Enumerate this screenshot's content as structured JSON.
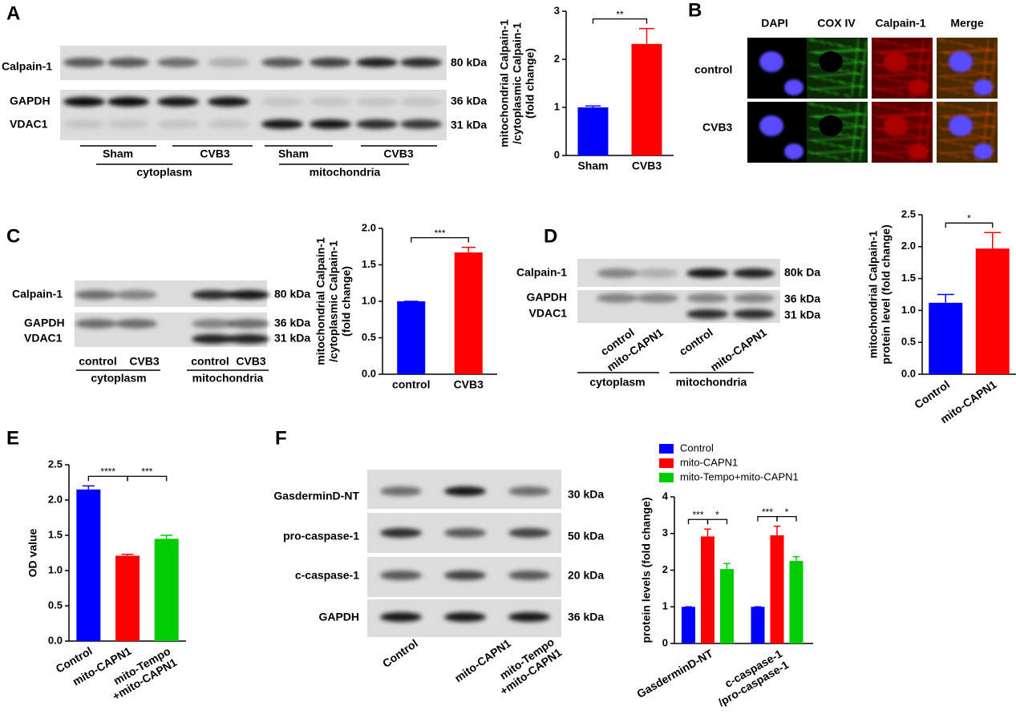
{
  "panel_labels": [
    "A",
    "B",
    "C",
    "D",
    "E",
    "F"
  ],
  "blots": {
    "A": {
      "rows": [
        "Calpain-1",
        "GAPDH",
        "VDAC1"
      ],
      "sizes": [
        "80 kDa",
        "36 kDa",
        "31 kDa"
      ],
      "lanes": [
        "Sham",
        "CVB3",
        "Sham",
        "CVB3"
      ],
      "fractions": [
        "cytoplasm",
        "mitochondria"
      ]
    },
    "C": {
      "rows": [
        "Calpain-1",
        "GAPDH",
        "VDAC1"
      ],
      "sizes": [
        "80 kDa",
        "36 kDa",
        "31 kDa"
      ],
      "lanes": [
        "control",
        "CVB3",
        "control",
        "CVB3"
      ],
      "fractions": [
        "cytoplasm",
        "mitochondria"
      ]
    },
    "D": {
      "rows": [
        "Calpain-1",
        "GAPDH",
        "VDAC1"
      ],
      "sizes": [
        "80k Da",
        "36 kDa",
        "31 kDa"
      ],
      "lanes": [
        "control",
        "mito-CAPN1",
        "control",
        "mito-CAPN1"
      ],
      "fractions": [
        "cytoplasm",
        "mitochondria"
      ]
    },
    "F": {
      "rows": [
        "GasderminD-NT",
        "pro-caspase-1",
        "c-caspase-1",
        "GAPDH"
      ],
      "sizes": [
        "30 kDa",
        "50 kDa",
        "20 kDa",
        "36 kDa"
      ],
      "lanes": [
        "Control",
        "mito-CAPN1",
        "mito-Tempo\n+mito-CAPN1"
      ]
    }
  },
  "microscopy": {
    "channels": [
      "DAPI",
      "COX IV",
      "Calpain-1",
      "Merge"
    ],
    "conditions": [
      "control",
      "CVB3"
    ]
  },
  "chart_data": [
    {
      "type": "bar",
      "ylabel": [
        "mitochondrial Calpain-1",
        "/cytoplasmic Calpain-1",
        "(fold change)"
      ],
      "categories": [
        "Sham",
        "CVB3"
      ],
      "values": [
        1.0,
        2.32
      ],
      "errors": [
        0.03,
        0.32
      ],
      "colors": [
        "#0000ff",
        "#ff0000"
      ],
      "ylim": [
        0,
        3
      ],
      "yticks": [
        0,
        1,
        2,
        3
      ],
      "significance": [
        {
          "from": 0,
          "to": 1,
          "label": "**"
        }
      ]
    },
    {
      "type": "bar",
      "ylabel": [
        "mitochondrial Calpain-1",
        "/cytoplasmic Calpain-1",
        "(fold change)"
      ],
      "categories": [
        "control",
        "CVB3"
      ],
      "values": [
        1.0,
        1.67
      ],
      "errors": [
        0,
        0.07
      ],
      "colors": [
        "#0000ff",
        "#ff0000"
      ],
      "ylim": [
        0,
        2
      ],
      "yticks": [
        {
          "value": 0,
          "label": "0.0"
        },
        0.5,
        {
          "value": 1,
          "label": "1.0"
        },
        1.5,
        {
          "value": 2,
          "label": "2.0"
        }
      ],
      "significance": [
        {
          "from": 0,
          "to": 1,
          "label": "***"
        }
      ]
    },
    {
      "type": "bar",
      "ylabel": [
        "mitochondrial Calpain-1",
        "protein level (fold change)"
      ],
      "categories": [
        "Control",
        "mito-CAPN1"
      ],
      "values": [
        1.12,
        1.97
      ],
      "errors": [
        0.13,
        0.25
      ],
      "colors": [
        "#0000ff",
        "#ff0000"
      ],
      "ylim": [
        0,
        2.5
      ],
      "yticks": [
        {
          "value": 0,
          "label": "0.0"
        },
        0.5,
        {
          "value": 1,
          "label": "1.0"
        },
        1.5,
        {
          "value": 2,
          "label": "2.0"
        },
        2.5
      ],
      "significance": [
        {
          "from": 0,
          "to": 1,
          "label": "*"
        }
      ]
    },
    {
      "type": "bar",
      "ylabel": [
        "OD value"
      ],
      "categories": [
        "Control",
        "mito-CAPN1",
        "mito-Tempo\n+mito-CAPN1"
      ],
      "values": [
        2.15,
        1.21,
        1.45
      ],
      "errors": [
        0.05,
        0.02,
        0.05
      ],
      "colors": [
        "#0000ff",
        "#ff0000",
        "#00cc00"
      ],
      "ylim": [
        0,
        2.5
      ],
      "yticks": [
        {
          "value": 0,
          "label": "0.0"
        },
        0.5,
        {
          "value": 1,
          "label": "1.0"
        },
        1.5,
        {
          "value": 2,
          "label": "2.0"
        },
        2.5
      ],
      "significance": [
        {
          "from": 0,
          "to": 1,
          "label": "****"
        },
        {
          "from": 1,
          "to": 2,
          "label": "***"
        }
      ]
    },
    {
      "type": "grouped_bar",
      "ylabel": [
        "protein levels (fold change)"
      ],
      "categories": [
        "GasderminD-NT",
        "c-caspase-1\n/pro-caspase-1"
      ],
      "series": [
        {
          "name": "Control",
          "color": "#0000ff",
          "values": [
            1,
            1
          ],
          "errors": [
            0,
            0
          ]
        },
        {
          "name": "mito-CAPN1",
          "color": "#ff0000",
          "values": [
            2.92,
            2.95
          ],
          "errors": [
            0.2,
            0.25
          ]
        },
        {
          "name": "mito-Tempo+mito-CAPN1",
          "color": "#00cc00",
          "values": [
            2.03,
            2.25
          ],
          "errors": [
            0.15,
            0.12
          ]
        }
      ],
      "ylim": [
        0,
        4
      ],
      "yticks": [
        0,
        1,
        2,
        3,
        4
      ],
      "legend": "top",
      "significance": [
        {
          "group": 0,
          "from": 0,
          "to": 1,
          "label": "***"
        },
        {
          "group": 0,
          "from": 1,
          "to": 2,
          "label": "*"
        },
        {
          "group": 1,
          "from": 0,
          "to": 1,
          "label": "***"
        },
        {
          "group": 1,
          "from": 1,
          "to": 2,
          "label": "*"
        }
      ]
    }
  ]
}
